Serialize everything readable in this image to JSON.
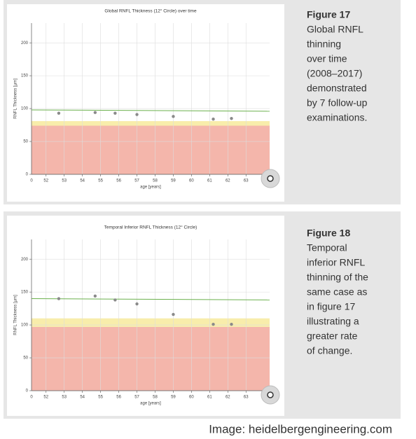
{
  "chart_data": [
    {
      "type": "scatter",
      "title": "Global RNFL Thickness (12° Circle) over time",
      "x_label": "age [years]",
      "y_label": "RNFL Thickness [µm]",
      "x_origin_label": "0",
      "x": [
        52.7,
        54.7,
        55.8,
        57.0,
        59.0,
        61.2,
        62.2
      ],
      "values": [
        93,
        94,
        93,
        91,
        88,
        84,
        85
      ],
      "color": "#8a8a8a",
      "xlim": [
        51.2,
        64.3
      ],
      "xticks": [
        52,
        53,
        54,
        55,
        56,
        57,
        58,
        59,
        60,
        61,
        62,
        63
      ],
      "ylim": [
        0,
        230
      ],
      "yticks": [
        0,
        50,
        100,
        150,
        200
      ],
      "grid": true,
      "trend_y": [
        98,
        96
      ],
      "trend_color": "#6ab04c",
      "bands": [
        {
          "range": [
            0,
            74
          ],
          "color": "#f2a99c"
        },
        {
          "range": [
            74,
            81
          ],
          "color": "#f7ea9c"
        }
      ]
    },
    {
      "type": "scatter",
      "title": "Temporal Inferior RNFL Thickness (12° Circle)",
      "x_label": "age [years]",
      "y_label": "RNFL Thickness [µm]",
      "x_origin_label": "0",
      "x": [
        52.7,
        54.7,
        55.8,
        57.0,
        59.0,
        61.2,
        62.2
      ],
      "values": [
        140,
        144,
        138,
        132,
        116,
        101,
        101
      ],
      "color": "#8a8a8a",
      "xlim": [
        51.2,
        64.3
      ],
      "xticks": [
        52,
        53,
        54,
        55,
        56,
        57,
        58,
        59,
        60,
        61,
        62,
        63
      ],
      "ylim": [
        0,
        230
      ],
      "yticks": [
        0,
        50,
        100,
        150,
        200
      ],
      "grid": true,
      "trend_y": [
        140,
        138
      ],
      "trend_color": "#6ab04c",
      "bands": [
        {
          "range": [
            0,
            97
          ],
          "color": "#f2a99c"
        },
        {
          "range": [
            97,
            110
          ],
          "color": "#f7ea9c"
        }
      ]
    }
  ],
  "captions": [
    {
      "title": "Figure 17",
      "lines": [
        "Global RNFL",
        "thinning",
        "over time",
        "(2008–2017)",
        "demonstrated",
        "by 7 follow-up",
        "examinations."
      ]
    },
    {
      "title": "Figure 18",
      "lines": [
        "Temporal",
        "inferior RNFL",
        "thinning of the",
        "same case as",
        "in figure 17",
        "illustrating a",
        "greater rate",
        "of change."
      ]
    }
  ],
  "credit": "Image: heidelbergengineering.com"
}
